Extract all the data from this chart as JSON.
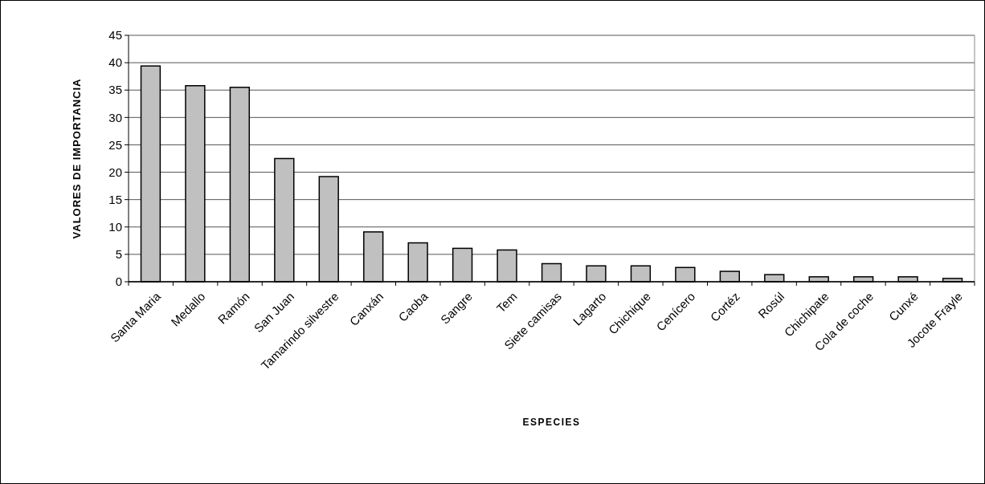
{
  "chart_data": {
    "type": "bar",
    "xlabel": "ESPECIES",
    "ylabel": "VALORES DE IMPORTANCIA",
    "categories": [
      "Santa Maria",
      "Medallo",
      "Ramón",
      "San Juan",
      "Tamarindo silvestre",
      "Canxán",
      "Caoba",
      "Sangre",
      "Tem",
      "Siete camisas",
      "Lagarto",
      "Chichique",
      "Cenícero",
      "Cortéz",
      "Rosúl",
      "Chichipate",
      "Cola de coche",
      "Cunxé",
      "Jocote Frayle"
    ],
    "values": [
      39.4,
      35.8,
      35.5,
      22.5,
      19.2,
      9.1,
      7.1,
      6.1,
      5.8,
      3.3,
      2.9,
      2.9,
      2.6,
      1.9,
      1.3,
      0.9,
      0.9,
      0.9,
      0.6
    ],
    "color": "#c0c0c0",
    "ylim": [
      0,
      45
    ],
    "yticks": [
      0,
      5,
      10,
      15,
      20,
      25,
      30,
      35,
      40,
      45
    ],
    "grid": "y"
  }
}
